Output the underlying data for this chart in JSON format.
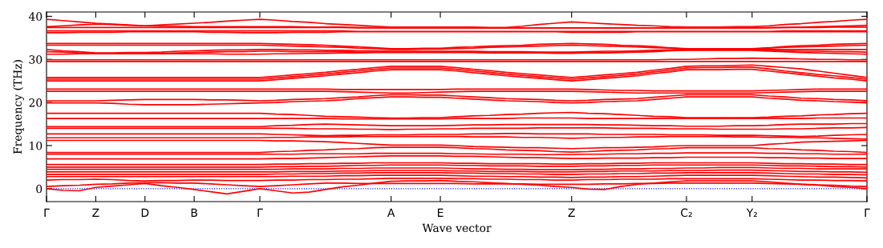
{
  "chart_data": {
    "type": "line",
    "xlabel": "Wave vector",
    "ylabel": "Frequency (THz)",
    "ylim": [
      -3,
      41
    ],
    "yticks": [
      0,
      10,
      20,
      30,
      40
    ],
    "marker": "none",
    "line_style": "solid",
    "ref_lines": [
      {
        "axis": "y",
        "value": 0,
        "color": "#0000ff",
        "line_style": "dotted"
      }
    ],
    "categories": [
      "Γ",
      null,
      null,
      "Z",
      null,
      null,
      "D",
      null,
      null,
      "B",
      null,
      null,
      null,
      "Γ",
      null,
      null,
      null,
      null,
      null,
      null,
      null,
      "A",
      null,
      null,
      "E",
      null,
      null,
      null,
      null,
      null,
      null,
      null,
      "Z",
      null,
      null,
      null,
      null,
      null,
      null,
      "C₂",
      null,
      null,
      null,
      "Y₂",
      null,
      null,
      null,
      null,
      null,
      null,
      "Γ"
    ],
    "series": [
      {
        "color": "#ff0000",
        "values": [
          39.3,
          39.0,
          38.7,
          38.4,
          38.2,
          38.0,
          37.8,
          38.0,
          38.2,
          38.4,
          38.6,
          38.9,
          39.1,
          39.3,
          39.1,
          38.8,
          38.6,
          38.3,
          38.1,
          37.9,
          37.7,
          37.5,
          37.5,
          37.5,
          37.5,
          37.5,
          37.5,
          37.4,
          37.4,
          37.7,
          38.1,
          38.4,
          38.7,
          38.5,
          38.3,
          38.1,
          37.9,
          37.8,
          37.6,
          37.5,
          37.5,
          37.5,
          37.6,
          37.6,
          37.8,
          38.1,
          38.3,
          38.6,
          38.8,
          39.1,
          39.3
        ]
      },
      {
        "color": "#ff0000",
        "values": [
          37.6,
          37.8,
          38.0,
          38.2,
          38.1,
          37.9,
          37.8,
          37.7,
          37.7,
          37.6,
          37.6,
          37.6,
          37.6,
          37.6,
          37.6,
          37.6,
          37.5,
          37.5,
          37.5,
          37.4,
          37.4,
          37.3,
          37.3,
          37.3,
          37.3,
          37.3,
          37.3,
          37.3,
          37.3,
          37.3,
          37.3,
          37.3,
          37.3,
          37.3,
          37.3,
          37.3,
          37.3,
          37.3,
          37.3,
          37.3,
          37.3,
          37.3,
          37.3,
          37.3,
          37.4,
          37.4,
          37.5,
          37.6,
          37.7,
          37.8,
          37.9
        ]
      },
      {
        "color": "#ff0000",
        "values": [
          37.4,
          37.4,
          37.4,
          37.4,
          37.4,
          37.4,
          37.4,
          37.4,
          37.4,
          37.4,
          37.4,
          37.4,
          37.4,
          37.4,
          37.4,
          37.4,
          37.4,
          37.4,
          37.4,
          37.3,
          37.3,
          37.3,
          37.3,
          37.3,
          37.3,
          37.3,
          37.3,
          37.3,
          37.3,
          37.3,
          37.3,
          37.3,
          37.3,
          37.3,
          37.3,
          37.3,
          37.3,
          37.3,
          37.3,
          37.3,
          37.3,
          37.3,
          37.3,
          37.3,
          37.3,
          37.4,
          37.4,
          37.4,
          37.5,
          37.5,
          37.5
        ]
      },
      {
        "color": "#ff0000",
        "values": [
          36.6,
          36.6,
          36.6,
          36.6,
          36.6,
          36.6,
          36.6,
          36.6,
          36.6,
          36.6,
          36.6,
          36.6,
          36.6,
          36.6,
          36.6,
          36.6,
          36.6,
          36.6,
          36.6,
          36.5,
          36.5,
          36.5,
          36.5,
          36.5,
          36.5,
          36.5,
          36.5,
          36.5,
          36.5,
          36.5,
          36.5,
          36.5,
          36.5,
          36.5,
          36.5,
          36.5,
          36.5,
          36.5,
          36.5,
          36.5,
          36.5,
          36.5,
          36.5,
          36.5,
          36.5,
          36.6,
          36.6,
          36.6,
          36.6,
          36.6,
          36.6
        ]
      },
      {
        "color": "#ff0000",
        "values": [
          36.2,
          36.2,
          36.3,
          36.3,
          36.3,
          36.4,
          36.4,
          36.4,
          36.4,
          36.4,
          36.3,
          36.3,
          36.2,
          36.2,
          36.2,
          36.3,
          36.3,
          36.3,
          36.4,
          36.4,
          36.4,
          36.4,
          36.4,
          36.4,
          36.4,
          36.4,
          36.4,
          36.4,
          36.4,
          36.4,
          36.4,
          36.4,
          36.3,
          36.3,
          36.3,
          36.3,
          36.4,
          36.4,
          36.4,
          36.4,
          36.4,
          36.4,
          36.4,
          36.4,
          36.4,
          36.4,
          36.4,
          36.4,
          36.4,
          36.4,
          36.4
        ]
      },
      {
        "color": "#ff0000",
        "values": [
          33.7,
          33.7,
          33.7,
          33.7,
          33.7,
          33.7,
          33.7,
          33.7,
          33.7,
          33.7,
          33.7,
          33.7,
          33.7,
          33.7,
          33.6,
          33.5,
          33.4,
          33.3,
          33.1,
          32.9,
          32.7,
          32.5,
          32.5,
          32.6,
          32.6,
          32.8,
          32.9,
          33.1,
          33.2,
          33.3,
          33.5,
          33.6,
          33.7,
          33.6,
          33.5,
          33.3,
          33.2,
          33.0,
          32.7,
          32.5,
          32.5,
          32.5,
          32.5,
          32.5,
          32.7,
          33.0,
          33.2,
          33.3,
          33.5,
          33.6,
          33.7
        ]
      },
      {
        "color": "#ff0000",
        "values": [
          33.3,
          33.3,
          33.3,
          33.3,
          33.3,
          33.3,
          33.3,
          33.3,
          33.3,
          33.3,
          33.3,
          33.3,
          33.3,
          33.3,
          33.2,
          33.1,
          33.0,
          32.9,
          32.8,
          32.6,
          32.5,
          32.3,
          32.3,
          32.4,
          32.4,
          32.5,
          32.6,
          32.8,
          32.9,
          33.0,
          33.1,
          33.2,
          33.3,
          33.2,
          33.1,
          33.0,
          32.9,
          32.7,
          32.6,
          32.4,
          32.4,
          32.4,
          32.4,
          32.4,
          32.6,
          32.8,
          32.9,
          33.0,
          33.1,
          33.2,
          33.3
        ]
      },
      {
        "color": "#ff0000",
        "values": [
          32.3,
          32.0,
          31.8,
          31.5,
          31.5,
          31.6,
          31.6,
          31.7,
          31.9,
          32.0,
          32.1,
          32.2,
          32.2,
          32.3,
          32.3,
          32.2,
          32.2,
          32.1,
          32.1,
          32.0,
          32.0,
          31.9,
          31.9,
          31.9,
          31.9,
          31.9,
          31.9,
          31.8,
          31.8,
          31.8,
          31.7,
          31.7,
          31.7,
          31.8,
          31.9,
          31.9,
          32.0,
          32.1,
          32.2,
          32.3,
          32.3,
          32.3,
          32.3,
          32.3,
          32.3,
          32.3,
          32.3,
          32.3,
          32.3,
          32.3,
          32.3
        ]
      },
      {
        "color": "#ff0000",
        "values": [
          31.8,
          31.7,
          31.5,
          31.4,
          31.4,
          31.3,
          31.3,
          31.4,
          31.5,
          31.6,
          31.7,
          31.8,
          31.8,
          31.9,
          31.9,
          31.8,
          31.8,
          31.8,
          31.8,
          31.7,
          31.7,
          31.7,
          31.7,
          31.7,
          31.7,
          31.7,
          31.7,
          31.6,
          31.6,
          31.6,
          31.6,
          31.5,
          31.5,
          31.6,
          31.6,
          31.7,
          31.8,
          31.9,
          32.1,
          32.2,
          32.2,
          32.2,
          32.2,
          32.2,
          32.1,
          32.0,
          31.9,
          31.9,
          31.8,
          31.8,
          31.7
        ]
      },
      {
        "color": "#ff0000",
        "values": [
          31.2,
          31.2,
          31.3,
          31.3,
          31.3,
          31.3,
          31.3,
          31.3,
          31.3,
          31.3,
          31.3,
          31.2,
          31.2,
          31.2,
          31.3,
          31.3,
          31.4,
          31.4,
          31.5,
          31.5,
          31.6,
          31.6,
          31.6,
          31.6,
          31.6,
          31.6,
          31.6,
          31.5,
          31.5,
          31.5,
          31.5,
          31.4,
          31.4,
          31.5,
          31.5,
          31.6,
          31.7,
          31.8,
          32.0,
          32.1,
          32.1,
          32.1,
          32.1,
          32.1,
          31.9,
          31.8,
          31.6,
          31.5,
          31.4,
          31.3,
          31.2
        ]
      },
      {
        "color": "#ff0000",
        "values": [
          29.9,
          29.9,
          29.9,
          29.9,
          29.9,
          29.9,
          29.9,
          29.9,
          29.9,
          29.9,
          29.9,
          29.9,
          29.9,
          29.9,
          29.9,
          29.9,
          29.9,
          29.9,
          29.9,
          29.9,
          29.9,
          29.9,
          29.9,
          29.9,
          29.9,
          29.9,
          29.9,
          29.9,
          29.9,
          29.9,
          29.9,
          29.9,
          29.9,
          29.9,
          29.9,
          29.9,
          29.9,
          29.9,
          30.0,
          30.0,
          30.1,
          30.2,
          30.2,
          30.3,
          30.2,
          30.2,
          30.1,
          30.0,
          30.0,
          29.9,
          29.9
        ]
      },
      {
        "color": "#ff0000",
        "values": [
          29.5,
          29.5,
          29.5,
          29.5,
          29.5,
          29.5,
          29.5,
          29.5,
          29.5,
          29.5,
          29.5,
          29.5,
          29.5,
          29.5,
          29.5,
          29.5,
          29.5,
          29.5,
          29.5,
          29.5,
          29.5,
          29.5,
          29.5,
          29.5,
          29.5,
          29.5,
          29.5,
          29.5,
          29.5,
          29.5,
          29.5,
          29.5,
          29.5,
          29.5,
          29.5,
          29.5,
          29.5,
          29.5,
          29.5,
          29.5,
          29.5,
          29.5,
          29.5,
          29.5,
          29.5,
          29.5,
          29.5,
          29.5,
          29.5,
          29.5,
          29.5
        ]
      },
      {
        "color": "#ff0000",
        "values": [
          25.8,
          25.8,
          25.8,
          25.8,
          25.8,
          25.8,
          25.8,
          25.8,
          25.8,
          25.8,
          25.8,
          25.8,
          25.8,
          25.8,
          26.1,
          26.4,
          26.7,
          27.0,
          27.4,
          27.7,
          28.1,
          28.4,
          28.4,
          28.4,
          28.4,
          28.1,
          27.7,
          27.4,
          27.0,
          26.7,
          26.4,
          26.1,
          25.8,
          26.1,
          26.4,
          26.7,
          27.0,
          27.5,
          27.9,
          28.4,
          28.5,
          28.5,
          28.6,
          28.7,
          28.4,
          28.1,
          27.8,
          27.3,
          26.8,
          26.3,
          25.8
        ]
      },
      {
        "color": "#ff0000",
        "values": [
          25.4,
          25.4,
          25.4,
          25.4,
          25.4,
          25.4,
          25.4,
          25.4,
          25.4,
          25.4,
          25.4,
          25.4,
          25.4,
          25.4,
          25.7,
          26.0,
          26.3,
          26.6,
          27.0,
          27.3,
          27.7,
          28.0,
          28.0,
          28.0,
          28.0,
          27.7,
          27.3,
          27.0,
          26.6,
          26.3,
          26.0,
          25.7,
          25.4,
          25.7,
          26.0,
          26.3,
          26.6,
          27.1,
          27.5,
          28.0,
          28.1,
          28.1,
          28.2,
          28.2,
          27.8,
          27.3,
          26.9,
          26.5,
          26.2,
          25.8,
          25.4
        ]
      },
      {
        "color": "#ff0000",
        "values": [
          25.0,
          25.0,
          25.0,
          25.0,
          25.0,
          25.0,
          25.0,
          25.0,
          25.0,
          25.0,
          25.0,
          25.0,
          25.0,
          25.0,
          25.3,
          25.6,
          25.9,
          26.2,
          26.6,
          26.9,
          27.3,
          27.6,
          27.6,
          27.6,
          27.6,
          27.3,
          26.9,
          26.6,
          26.2,
          25.9,
          25.6,
          25.3,
          25.0,
          25.3,
          25.6,
          25.9,
          26.2,
          26.7,
          27.1,
          27.6,
          27.6,
          27.6,
          27.7,
          27.7,
          27.3,
          26.9,
          26.5,
          26.1,
          25.7,
          25.4,
          25.0
        ]
      },
      {
        "color": "#ff0000",
        "values": [
          23.1,
          23.1,
          23.1,
          23.1,
          23.1,
          23.1,
          23.1,
          23.1,
          23.1,
          23.1,
          23.1,
          23.1,
          23.1,
          23.1,
          23.1,
          23.1,
          23.1,
          23.1,
          23.0,
          23.0,
          23.0,
          23.0,
          23.0,
          23.0,
          23.0,
          23.1,
          23.1,
          23.1,
          23.1,
          23.1,
          23.1,
          23.1,
          23.1,
          23.0,
          22.9,
          22.8,
          22.8,
          22.7,
          22.7,
          22.7,
          22.7,
          22.7,
          22.7,
          22.7,
          22.8,
          22.9,
          23.0,
          23.1,
          23.1,
          23.1,
          23.1
        ]
      },
      {
        "color": "#ff0000",
        "values": [
          22.6,
          22.6,
          22.6,
          22.6,
          22.6,
          22.6,
          22.6,
          22.6,
          22.6,
          22.6,
          22.6,
          22.6,
          22.6,
          22.6,
          22.6,
          22.6,
          22.6,
          22.6,
          22.5,
          22.4,
          22.3,
          22.2,
          22.2,
          22.3,
          22.4,
          22.5,
          22.6,
          22.6,
          22.6,
          22.6,
          22.6,
          22.6,
          22.6,
          22.5,
          22.4,
          22.3,
          22.2,
          22.2,
          22.2,
          22.2,
          22.2,
          22.2,
          22.2,
          22.2,
          22.3,
          22.4,
          22.5,
          22.6,
          22.6,
          22.6,
          22.6
        ]
      },
      {
        "color": "#ff0000",
        "values": [
          20.4,
          20.4,
          20.4,
          20.4,
          20.5,
          20.6,
          20.7,
          20.7,
          20.7,
          20.7,
          20.6,
          20.6,
          20.5,
          20.4,
          20.5,
          20.7,
          20.8,
          20.9,
          21.1,
          21.3,
          21.6,
          21.8,
          21.8,
          21.7,
          21.7,
          21.5,
          21.3,
          21.1,
          20.9,
          20.8,
          20.7,
          20.5,
          20.4,
          20.5,
          20.7,
          20.8,
          20.9,
          21.2,
          21.5,
          21.8,
          21.8,
          21.8,
          21.8,
          21.8,
          21.5,
          21.3,
          21.0,
          20.9,
          20.7,
          20.6,
          20.4
        ]
      },
      {
        "color": "#ff0000",
        "values": [
          19.9,
          19.9,
          19.9,
          19.9,
          19.8,
          19.6,
          19.5,
          19.5,
          19.5,
          19.5,
          19.6,
          19.7,
          19.8,
          19.9,
          20.0,
          20.2,
          20.3,
          20.4,
          20.6,
          20.9,
          21.1,
          21.3,
          21.3,
          21.2,
          21.2,
          21.0,
          20.8,
          20.6,
          20.4,
          20.3,
          20.2,
          20.0,
          19.9,
          20.0,
          20.2,
          20.3,
          20.4,
          20.7,
          21.0,
          21.3,
          21.3,
          21.3,
          21.3,
          21.3,
          21.0,
          20.8,
          20.5,
          20.4,
          20.2,
          20.1,
          19.9
        ]
      },
      {
        "color": "#ff0000",
        "values": [
          17.5,
          17.5,
          17.5,
          17.5,
          17.5,
          17.5,
          17.5,
          17.5,
          17.5,
          17.5,
          17.5,
          17.5,
          17.5,
          17.5,
          17.3,
          17.2,
          17.0,
          16.8,
          16.7,
          16.6,
          16.5,
          16.4,
          16.4,
          16.5,
          16.5,
          16.7,
          16.9,
          17.0,
          17.2,
          17.3,
          17.5,
          17.6,
          17.7,
          17.5,
          17.4,
          17.2,
          17.0,
          16.8,
          16.7,
          16.5,
          16.5,
          16.5,
          16.5,
          16.5,
          16.6,
          16.8,
          16.9,
          17.1,
          17.2,
          17.4,
          17.5
        ]
      },
      {
        "color": "#ff0000",
        "values": [
          16.3,
          16.3,
          16.3,
          16.3,
          16.3,
          16.3,
          16.3,
          16.3,
          16.3,
          16.3,
          16.3,
          16.3,
          16.3,
          16.3,
          16.3,
          16.3,
          16.3,
          16.3,
          16.2,
          16.2,
          16.2,
          16.2,
          16.2,
          16.2,
          16.2,
          16.3,
          16.3,
          16.3,
          16.3,
          16.4,
          16.4,
          16.4,
          16.4,
          16.3,
          16.3,
          16.3,
          16.3,
          16.3,
          16.3,
          16.3,
          16.3,
          16.3,
          16.3,
          16.3,
          16.3,
          16.3,
          16.3,
          16.4,
          16.4,
          16.4,
          16.4
        ]
      },
      {
        "color": "#ff0000",
        "values": [
          14.4,
          14.4,
          14.4,
          14.4,
          14.4,
          14.4,
          14.4,
          14.4,
          14.4,
          14.4,
          14.4,
          14.4,
          14.4,
          14.4,
          14.6,
          14.7,
          14.9,
          15.0,
          14.9,
          14.8,
          14.7,
          14.6,
          14.6,
          14.6,
          14.6,
          14.7,
          14.8,
          14.8,
          14.9,
          14.9,
          14.9,
          14.9,
          14.9,
          14.9,
          14.8,
          14.8,
          14.7,
          14.6,
          14.6,
          14.5,
          14.5,
          14.5,
          14.6,
          14.6,
          14.7,
          14.9,
          15.0,
          15.0,
          15.0,
          15.1,
          15.1
        ]
      },
      {
        "color": "#ff0000",
        "values": [
          14.0,
          14.0,
          14.0,
          14.0,
          14.0,
          14.0,
          14.0,
          14.0,
          14.0,
          14.0,
          14.0,
          14.0,
          14.0,
          14.0,
          14.0,
          14.0,
          13.9,
          13.9,
          13.9,
          13.8,
          13.8,
          13.7,
          13.8,
          13.8,
          13.9,
          13.9,
          14.0,
          14.0,
          14.0,
          14.0,
          14.1,
          14.1,
          14.1,
          14.1,
          14.1,
          14.0,
          14.0,
          14.0,
          13.9,
          13.9,
          13.9,
          13.8,
          13.8,
          13.8,
          13.8,
          13.9,
          13.9,
          14.0,
          14.1,
          14.1,
          14.2
        ]
      },
      {
        "color": "#ff0000",
        "values": [
          12.7,
          12.7,
          12.7,
          12.7,
          12.7,
          12.7,
          12.7,
          12.7,
          12.7,
          12.7,
          12.7,
          12.7,
          12.7,
          12.7,
          12.6,
          12.5,
          12.4,
          12.3,
          12.4,
          12.4,
          12.5,
          12.5,
          12.5,
          12.6,
          12.6,
          12.6,
          12.7,
          12.7,
          12.8,
          12.8,
          12.7,
          12.7,
          12.7,
          12.7,
          12.6,
          12.6,
          12.6,
          12.6,
          12.5,
          12.5,
          12.5,
          12.4,
          12.4,
          12.4,
          12.3,
          12.2,
          12.1,
          12.2,
          12.4,
          12.5,
          12.6
        ]
      },
      {
        "color": "#ff0000",
        "values": [
          11.8,
          11.8,
          11.8,
          11.8,
          11.8,
          11.8,
          11.8,
          11.8,
          11.8,
          11.8,
          11.8,
          11.8,
          11.8,
          11.8,
          11.9,
          11.9,
          12.0,
          12.0,
          12.0,
          12.1,
          12.1,
          12.1,
          12.1,
          12.1,
          12.1,
          12.1,
          12.0,
          12.0,
          12.0,
          11.9,
          11.9,
          11.8,
          11.7,
          11.8,
          11.9,
          11.9,
          12.0,
          12.0,
          12.1,
          12.1,
          12.1,
          12.1,
          12.0,
          12.0,
          11.9,
          11.9,
          11.8,
          11.8,
          11.7,
          11.6,
          11.5
        ]
      },
      {
        "color": "#ff0000",
        "values": [
          11.2,
          11.2,
          11.2,
          11.2,
          11.2,
          11.2,
          11.2,
          11.2,
          11.2,
          11.2,
          11.2,
          11.2,
          11.2,
          11.2,
          11.1,
          11.1,
          11.0,
          10.9,
          10.7,
          10.5,
          10.3,
          10.1,
          10.1,
          10.1,
          10.1,
          10.0,
          9.8,
          9.7,
          9.6,
          9.5,
          9.5,
          9.4,
          9.3,
          9.4,
          9.5,
          9.5,
          9.6,
          9.7,
          9.9,
          10.0,
          10.0,
          10.0,
          10.0,
          10.0,
          10.3,
          10.5,
          10.8,
          10.9,
          11.0,
          11.1,
          11.2
        ]
      },
      {
        "color": "#ff0000",
        "values": [
          8.4,
          8.4,
          8.4,
          8.4,
          8.4,
          8.4,
          8.4,
          8.4,
          8.4,
          8.4,
          8.4,
          8.4,
          8.4,
          8.4,
          8.6,
          8.7,
          8.9,
          9.0,
          9.2,
          9.3,
          9.5,
          9.6,
          9.6,
          9.6,
          9.6,
          9.5,
          9.3,
          9.2,
          9.0,
          8.9,
          8.8,
          8.6,
          8.5,
          8.6,
          8.8,
          8.9,
          9.0,
          9.2,
          9.3,
          9.5,
          9.5,
          9.5,
          9.5,
          9.5,
          9.3,
          9.2,
          9.0,
          8.9,
          8.7,
          8.6,
          8.4
        ]
      },
      {
        "color": "#ff0000",
        "values": [
          8.0,
          8.0,
          8.0,
          8.0,
          8.0,
          8.0,
          8.0,
          8.0,
          8.0,
          8.0,
          8.0,
          8.0,
          8.0,
          8.0,
          8.0,
          8.0,
          8.1,
          8.1,
          8.1,
          8.1,
          8.2,
          8.2,
          8.2,
          8.2,
          8.2,
          8.1,
          8.1,
          8.0,
          8.0,
          8.0,
          7.9,
          7.9,
          7.9,
          8.0,
          8.0,
          8.1,
          8.1,
          8.2,
          8.2,
          8.3,
          8.3,
          8.3,
          8.3,
          8.3,
          8.2,
          8.2,
          8.1,
          8.1,
          8.0,
          8.0,
          8.0
        ]
      },
      {
        "color": "#ff0000",
        "values": [
          6.9,
          6.9,
          6.9,
          6.9,
          6.9,
          6.9,
          6.9,
          6.9,
          6.9,
          6.9,
          6.9,
          6.9,
          6.9,
          6.9,
          7.0,
          7.0,
          7.1,
          7.2,
          7.3,
          7.4,
          7.5,
          7.6,
          7.6,
          7.6,
          7.6,
          7.5,
          7.5,
          7.4,
          7.3,
          7.2,
          7.2,
          7.1,
          7.0,
          7.0,
          7.1,
          7.1,
          7.1,
          7.2,
          7.2,
          7.3,
          7.3,
          7.3,
          7.3,
          7.3,
          7.2,
          7.2,
          7.1,
          7.1,
          7.0,
          7.0,
          7.0
        ]
      },
      {
        "color": "#ff0000",
        "values": [
          5.6,
          5.6,
          5.6,
          5.6,
          5.6,
          5.6,
          5.6,
          5.6,
          5.6,
          5.6,
          5.6,
          5.6,
          5.6,
          5.6,
          5.7,
          5.7,
          5.8,
          5.8,
          5.9,
          5.9,
          6.0,
          6.0,
          6.0,
          6.0,
          6.0,
          5.9,
          5.9,
          5.8,
          5.8,
          5.8,
          5.8,
          5.7,
          5.7,
          5.8,
          5.8,
          5.9,
          5.9,
          6.0,
          6.0,
          6.0,
          6.0,
          6.0,
          6.0,
          6.0,
          5.9,
          5.8,
          5.8,
          5.7,
          5.7,
          5.6,
          5.6
        ]
      },
      {
        "color": "#ff0000",
        "values": [
          5.0,
          5.0,
          5.0,
          5.0,
          5.0,
          5.0,
          5.0,
          5.0,
          5.0,
          5.0,
          5.0,
          5.0,
          5.0,
          5.0,
          5.1,
          5.1,
          5.2,
          5.2,
          5.3,
          5.4,
          5.4,
          5.5,
          5.5,
          5.5,
          5.5,
          5.4,
          5.4,
          5.3,
          5.3,
          5.3,
          5.2,
          5.2,
          5.2,
          5.3,
          5.3,
          5.4,
          5.4,
          5.5,
          5.5,
          5.5,
          5.5,
          5.5,
          5.5,
          5.5,
          5.4,
          5.3,
          5.3,
          5.2,
          5.1,
          5.1,
          5.0
        ]
      },
      {
        "color": "#ff0000",
        "values": [
          4.5,
          4.5,
          4.5,
          4.5,
          4.5,
          4.5,
          4.5,
          4.5,
          4.5,
          4.5,
          4.5,
          4.5,
          4.5,
          4.5,
          4.5,
          4.6,
          4.6,
          4.6,
          4.7,
          4.7,
          4.8,
          4.8,
          4.8,
          4.8,
          4.8,
          4.7,
          4.6,
          4.6,
          4.5,
          4.5,
          4.4,
          4.4,
          4.4,
          4.5,
          4.5,
          4.6,
          4.6,
          4.7,
          4.7,
          4.8,
          4.8,
          4.9,
          4.9,
          4.9,
          4.8,
          4.7,
          4.7,
          4.6,
          4.6,
          4.6,
          4.6
        ]
      },
      {
        "color": "#ff0000",
        "values": [
          3.9,
          3.9,
          3.9,
          3.9,
          3.9,
          3.9,
          3.9,
          3.9,
          3.9,
          3.9,
          3.9,
          3.9,
          3.9,
          3.9,
          3.9,
          4.0,
          4.0,
          4.0,
          4.1,
          4.1,
          4.2,
          4.2,
          4.2,
          4.2,
          4.2,
          4.1,
          4.1,
          4.0,
          4.0,
          4.0,
          3.9,
          3.9,
          3.9,
          4.0,
          4.0,
          4.1,
          4.1,
          4.1,
          4.2,
          4.2,
          4.2,
          4.3,
          4.3,
          4.3,
          4.2,
          4.1,
          4.0,
          4.0,
          3.9,
          3.9,
          3.8
        ]
      },
      {
        "color": "#ff0000",
        "values": [
          3.3,
          3.3,
          3.3,
          3.3,
          3.3,
          3.3,
          3.3,
          3.3,
          3.3,
          3.3,
          3.3,
          3.3,
          3.3,
          3.3,
          3.4,
          3.4,
          3.5,
          3.5,
          3.6,
          3.6,
          3.7,
          3.7,
          3.7,
          3.7,
          3.7,
          3.6,
          3.6,
          3.5,
          3.5,
          3.4,
          3.4,
          3.3,
          3.3,
          3.4,
          3.4,
          3.5,
          3.5,
          3.6,
          3.6,
          3.7,
          3.7,
          3.7,
          3.7,
          3.7,
          3.6,
          3.5,
          3.4,
          3.4,
          3.3,
          3.3,
          3.2
        ]
      },
      {
        "color": "#ff0000",
        "values": [
          2.8,
          2.8,
          2.8,
          2.8,
          2.8,
          2.8,
          2.8,
          2.8,
          2.8,
          2.8,
          2.8,
          2.8,
          2.8,
          2.8,
          2.8,
          2.9,
          2.9,
          2.9,
          3.0,
          3.0,
          3.1,
          3.1,
          3.1,
          3.1,
          3.1,
          3.0,
          2.9,
          2.9,
          2.8,
          2.8,
          2.7,
          2.7,
          2.6,
          2.7,
          2.7,
          2.8,
          2.8,
          2.9,
          3.0,
          3.1,
          3.1,
          3.1,
          3.1,
          3.1,
          3.0,
          2.9,
          2.8,
          2.7,
          2.7,
          2.6,
          2.5
        ]
      },
      {
        "color": "#ff0000",
        "values": [
          2.0,
          2.1,
          2.1,
          2.2,
          2.1,
          1.9,
          1.8,
          1.9,
          1.9,
          2.0,
          2.0,
          1.9,
          1.9,
          1.9,
          2.0,
          2.0,
          2.1,
          2.1,
          2.2,
          2.2,
          2.3,
          2.4,
          2.4,
          2.4,
          2.4,
          2.3,
          2.3,
          2.2,
          2.2,
          2.1,
          2.1,
          2.0,
          2.0,
          2.1,
          2.1,
          2.2,
          2.2,
          2.2,
          2.3,
          2.3,
          2.3,
          2.3,
          2.3,
          2.3,
          2.2,
          2.1,
          2.0,
          2.0,
          1.9,
          1.9,
          1.8
        ]
      },
      {
        "color": "#ff0000",
        "values": [
          0,
          -0.4,
          -0.5,
          0.3,
          0.6,
          0.9,
          1.2,
          0.7,
          0.3,
          -0.2,
          -0.7,
          -1.2,
          -0.6,
          0,
          -0.5,
          -1.0,
          -0.8,
          -0.2,
          0.4,
          0.8,
          1.3,
          1.7,
          1.8,
          1.8,
          1.9,
          1.7,
          1.6,
          1.4,
          1.2,
          1.0,
          0.8,
          0.5,
          0.3,
          -0.1,
          -0.2,
          0.5,
          1.0,
          1.3,
          1.6,
          1.8,
          1.8,
          1.8,
          1.8,
          1.8,
          1.6,
          1.3,
          1.0,
          0.8,
          0.5,
          0.3,
          0
        ]
      },
      {
        "color": "#ff0000",
        "values": [
          0.5,
          0.7,
          0.8,
          1.0,
          1.1,
          1.3,
          1.4,
          1.4,
          1.3,
          1.3,
          1.1,
          0.9,
          0.7,
          0.5,
          0.7,
          0.9,
          1.1,
          1.3,
          1.3,
          1.2,
          1.2,
          1.2,
          1.2,
          1.2,
          1.2,
          1.2,
          1.1,
          1.1,
          1.1,
          1.1,
          1.0,
          1.0,
          1.0,
          1.0,
          1.1,
          1.1,
          1.2,
          1.2,
          1.3,
          1.3,
          1.3,
          1.3,
          1.3,
          1.3,
          1.2,
          1.1,
          1.0,
          0.9,
          0.8,
          0.6,
          0.5
        ]
      }
    ]
  }
}
